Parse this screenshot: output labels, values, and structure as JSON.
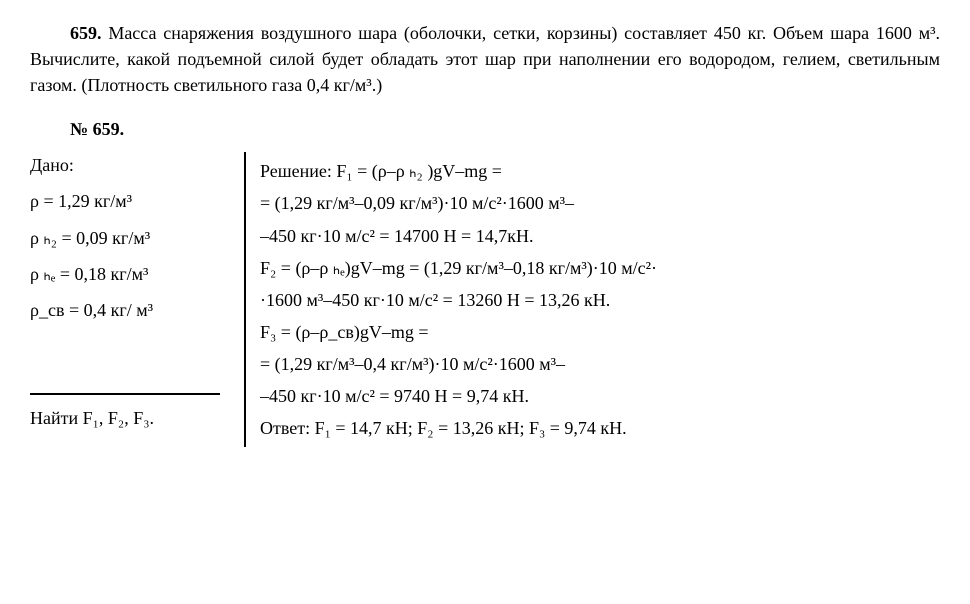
{
  "problem": {
    "number": "659.",
    "text": "Масса снаряжения воздушного шара (оболочки, сетки, корзины) составляет 450 кг. Объем шара 1600 м³. Вычислите, какой подъемной силой будет обладать этот шар при наполнении его водородом, гелием, светильным газом. (Плотность светильного газа 0,4 кг/м³.)"
  },
  "solutionHeader": "№ 659.",
  "given": {
    "label": "Дано:",
    "rho_air": "ρ = 1,29 кг/м³",
    "rho_h2": "ρ ₕ₂ = 0,09 кг/м³",
    "rho_he": "ρ ₕₑ = 0,18 кг/м³",
    "rho_sv": "ρ_св = 0,4 кг/ м³",
    "findLabel": "Найти F₁, F₂, F₃."
  },
  "solution": {
    "l1": "Решение: F₁ = (ρ–ρ ₕ₂ )gV–mg =",
    "l2": "= (1,29 кг/м³–0,09 кг/м³)·10 м/с²·1600 м³–",
    "l3": "–450 кг·10 м/с² = 14700 Н = 14,7кН.",
    "l4": "F₂ = (ρ–ρ ₕₑ)gV–mg = (1,29 кг/м³–0,18 кг/м³)·10 м/с²·",
    "l5": "·1600 м³–450 кг·10 м/с² = 13260 Н = 13,26 кН.",
    "l6": "F₃ = (ρ–ρ_св)gV–mg =",
    "l7": "= (1,29 кг/м³–0,4 кг/м³)·10 м/с²·1600 м³–",
    "l8": "–450 кг·10 м/с² = 9740 Н = 9,74 кН.",
    "answer": "Ответ: F₁ = 14,7 кН; F₂ = 13,26 кН; F₃ = 9,74 кН."
  }
}
